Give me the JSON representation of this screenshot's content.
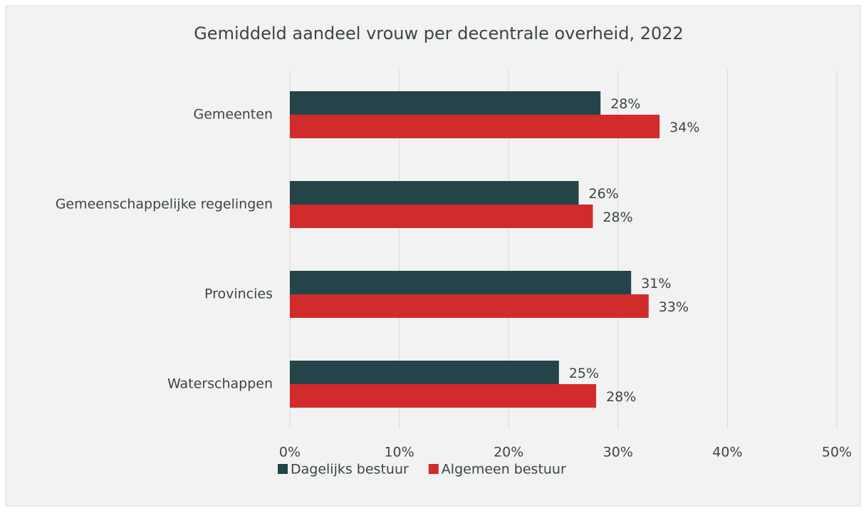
{
  "chart_data": {
    "type": "bar",
    "orientation": "horizontal",
    "title": "Gemiddeld aandeel vrouw per decentrale overheid, 2022",
    "categories": [
      "Gemeenten",
      "Gemeenschappelijke regelingen",
      "Provincies",
      "Waterschappen"
    ],
    "series": [
      {
        "name": "Dagelijks bestuur",
        "color": "#24444a",
        "values": [
          28.4,
          26.4,
          31.2,
          24.6
        ],
        "value_labels": [
          "28%",
          "26%",
          "31%",
          "25%"
        ]
      },
      {
        "name": "Algemeen bestuur",
        "color": "#d12b2b",
        "values": [
          33.8,
          27.7,
          32.8,
          28.0
        ],
        "value_labels": [
          "34%",
          "28%",
          "33%",
          "28%"
        ]
      }
    ],
    "xlim": [
      0,
      50
    ],
    "xticks": [
      {
        "value": 0,
        "label": "0%"
      },
      {
        "value": 10,
        "label": "10%"
      },
      {
        "value": 20,
        "label": "20%"
      },
      {
        "value": 30,
        "label": "30%"
      },
      {
        "value": 40,
        "label": "40%"
      },
      {
        "value": 50,
        "label": "50%"
      }
    ],
    "grid": true,
    "legend": "bottom"
  }
}
